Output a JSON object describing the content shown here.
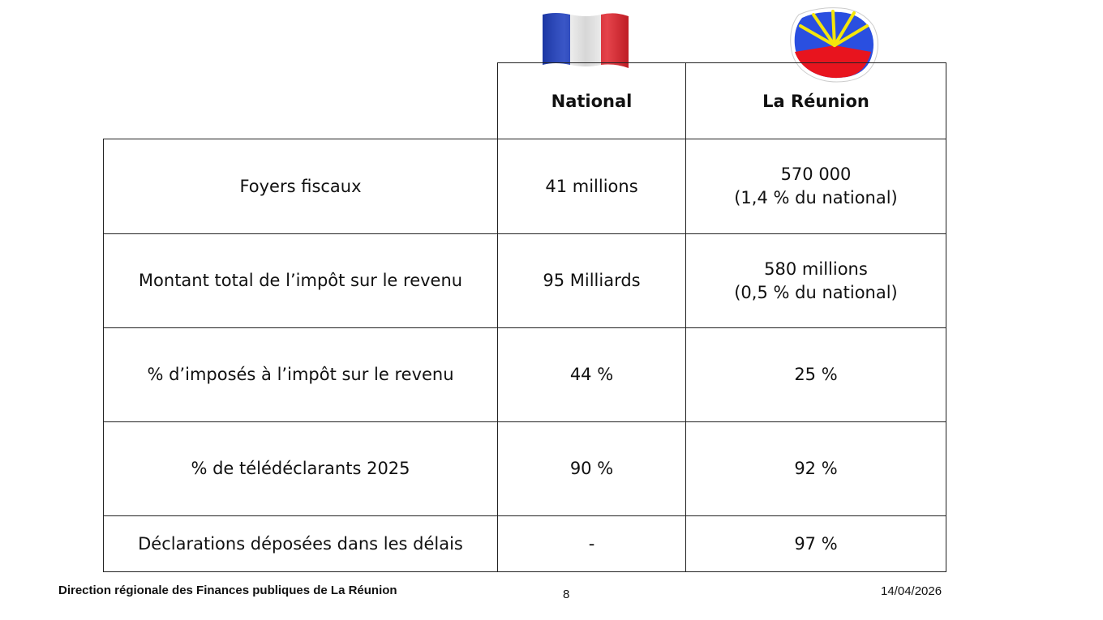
{
  "table": {
    "headers": {
      "national": "National",
      "reunion": "La Réunion"
    },
    "rows": [
      {
        "label": "Foyers fiscaux",
        "national": "41 millions",
        "reunion_line1": "570 000",
        "reunion_line2": "(1,4 % du national)"
      },
      {
        "label": "Montant total de l’impôt sur le revenu",
        "national": "95 Milliards",
        "reunion_line1": "580 millions",
        "reunion_line2": "(0,5 % du national)"
      },
      {
        "label": "% d’imposés à l’impôt sur le revenu",
        "national": "44 %",
        "reunion": "25 %"
      },
      {
        "label": "% de télédéclarants 2025",
        "national": "90 %",
        "reunion": "92 %"
      },
      {
        "label": "Déclarations déposées dans les délais",
        "national": "-",
        "reunion": "97 %"
      }
    ]
  },
  "images": {
    "flag_france": "france-flag-icon",
    "flag_reunion": "reunion-flag-icon"
  },
  "footer": {
    "organization": "Direction régionale des Finances publiques de La Réunion",
    "page_number": "8",
    "date": "14/04/2026"
  },
  "colors": {
    "france_blue": "#1f3fbf",
    "france_red": "#e0222b",
    "reunion_blue": "#2a4fe0",
    "reunion_red": "#e8141e",
    "reunion_yellow": "#f5e60a"
  }
}
